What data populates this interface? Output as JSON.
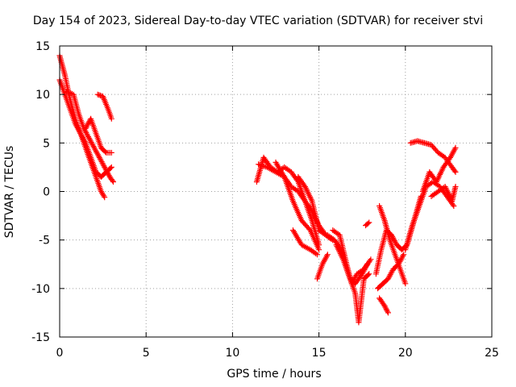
{
  "chart_data": {
    "type": "scatter",
    "title": "Day 154 of 2023, Sidereal Day-to-day VTEC variation (SDTVAR) for receiver stvi",
    "xlabel": "GPS time / hours",
    "ylabel": "SDTVAR / TECUs",
    "xlim": [
      0,
      25
    ],
    "ylim": [
      -15,
      15
    ],
    "xticks": [
      0,
      5,
      10,
      15,
      20,
      25
    ],
    "yticks": [
      -15,
      -10,
      -5,
      0,
      5,
      10,
      15
    ],
    "grid": true,
    "marker": "+",
    "color": "#ff0000",
    "series": [
      {
        "x": [
          0.0,
          0.3,
          0.6,
          0.9,
          1.2,
          1.5,
          1.8,
          2.1,
          2.4,
          2.6
        ],
        "y": [
          14.0,
          12.0,
          9.5,
          7.5,
          6.0,
          4.5,
          3.0,
          1.5,
          0.0,
          -0.6
        ]
      },
      {
        "x": [
          0.0,
          0.3,
          0.6,
          0.9,
          1.2,
          1.5,
          1.8,
          2.1,
          2.4,
          2.7,
          3.0
        ],
        "y": [
          11.5,
          10.0,
          8.5,
          7.0,
          6.0,
          5.0,
          3.5,
          2.0,
          1.5,
          2.0,
          2.5
        ]
      },
      {
        "x": [
          0.4,
          0.8,
          1.1,
          1.4,
          1.7,
          2.0,
          2.3,
          2.6,
          2.9,
          3.1
        ],
        "y": [
          10.3,
          10.0,
          8.0,
          6.5,
          5.5,
          4.5,
          3.5,
          2.5,
          1.5,
          1.0
        ]
      },
      {
        "x": [
          1.5,
          1.8,
          2.1,
          2.4,
          2.7,
          3.0
        ],
        "y": [
          6.5,
          7.5,
          6.0,
          4.5,
          4.0,
          4.0
        ]
      },
      {
        "x": [
          2.2,
          2.5,
          2.8,
          3.0
        ],
        "y": [
          10.0,
          9.8,
          8.5,
          7.5
        ]
      },
      {
        "x": [
          11.4,
          11.8,
          12.2,
          12.6,
          13.0,
          13.4,
          13.8,
          14.2,
          14.6,
          15.0
        ],
        "y": [
          1.0,
          3.5,
          2.5,
          2.0,
          2.5,
          2.0,
          1.0,
          -1.0,
          -3.0,
          -5.5
        ]
      },
      {
        "x": [
          11.5,
          12.0,
          12.5,
          13.0,
          13.4,
          13.8,
          14.2,
          14.6,
          15.0,
          15.4,
          15.8
        ],
        "y": [
          2.8,
          2.5,
          2.0,
          1.5,
          0.5,
          0.0,
          -1.0,
          -2.0,
          -3.5,
          -4.5,
          -5.0
        ]
      },
      {
        "x": [
          12.5,
          13.0,
          13.5,
          14.0,
          14.5,
          15.0
        ],
        "y": [
          3.0,
          1.5,
          -1.0,
          -3.0,
          -4.0,
          -6.0
        ]
      },
      {
        "x": [
          13.8,
          14.2,
          14.6,
          15.0,
          15.4,
          15.8
        ],
        "y": [
          1.5,
          0.5,
          -1.0,
          -4.0,
          -4.5,
          -5.0
        ]
      },
      {
        "x": [
          13.5,
          14.0,
          14.5,
          14.9
        ],
        "y": [
          -4.0,
          -5.5,
          -6.0,
          -6.5
        ]
      },
      {
        "x": [
          14.9,
          15.2,
          15.5
        ],
        "y": [
          -9.0,
          -7.5,
          -6.5
        ]
      },
      {
        "x": [
          15.5,
          15.9,
          16.3,
          16.7,
          17.1,
          17.3,
          17.6,
          17.9
        ],
        "y": [
          -4.5,
          -5.0,
          -6.0,
          -8.5,
          -10.5,
          -13.5,
          -9.0,
          -8.5
        ]
      },
      {
        "x": [
          15.8,
          16.2,
          16.6,
          16.9,
          17.2,
          17.6,
          18.0
        ],
        "y": [
          -4.0,
          -4.5,
          -7.5,
          -9.5,
          -8.5,
          -8.0,
          -7.0
        ]
      },
      {
        "x": [
          16.0,
          16.4,
          16.8,
          17.1,
          17.5,
          17.8
        ],
        "y": [
          -5.5,
          -7.0,
          -9.0,
          -9.5,
          -8.5,
          -7.5
        ]
      },
      {
        "x": [
          17.7,
          17.9
        ],
        "y": [
          -3.5,
          -3.2
        ]
      },
      {
        "x": [
          18.3,
          18.6,
          18.9,
          19.2,
          19.5,
          19.8,
          20.1,
          20.5,
          20.9
        ],
        "y": [
          -8.5,
          -6.0,
          -4.0,
          -4.5,
          -5.5,
          -6.0,
          -5.5,
          -3.0,
          -0.5
        ]
      },
      {
        "x": [
          18.5,
          18.8,
          19.1,
          19.4,
          19.7,
          20.0
        ],
        "y": [
          -1.5,
          -3.0,
          -5.0,
          -6.5,
          -8.0,
          -9.5
        ]
      },
      {
        "x": [
          18.4,
          18.7,
          19.0,
          19.3,
          19.6,
          19.9
        ],
        "y": [
          -10.0,
          -9.5,
          -9.0,
          -8.0,
          -7.5,
          -6.5
        ]
      },
      {
        "x": [
          18.5,
          18.8,
          19.0
        ],
        "y": [
          -11.0,
          -11.8,
          -12.5
        ]
      },
      {
        "x": [
          20.0,
          20.4,
          20.8,
          21.2,
          21.6,
          22.0,
          22.4,
          22.8
        ],
        "y": [
          -6.0,
          -3.5,
          -1.5,
          0.5,
          1.0,
          0.5,
          -0.5,
          -1.5
        ]
      },
      {
        "x": [
          20.3,
          20.7,
          21.1,
          21.5,
          21.9,
          22.3,
          22.7,
          22.9
        ],
        "y": [
          5.0,
          5.2,
          5.0,
          4.8,
          4.0,
          3.5,
          2.5,
          2.0
        ]
      },
      {
        "x": [
          21.0,
          21.4,
          21.8,
          22.2,
          22.6,
          22.9
        ],
        "y": [
          0.0,
          2.0,
          1.0,
          2.5,
          3.5,
          4.5
        ]
      },
      {
        "x": [
          21.5,
          21.9,
          22.3,
          22.7,
          22.9
        ],
        "y": [
          -0.5,
          0.0,
          0.5,
          -1.0,
          0.5
        ]
      }
    ]
  }
}
